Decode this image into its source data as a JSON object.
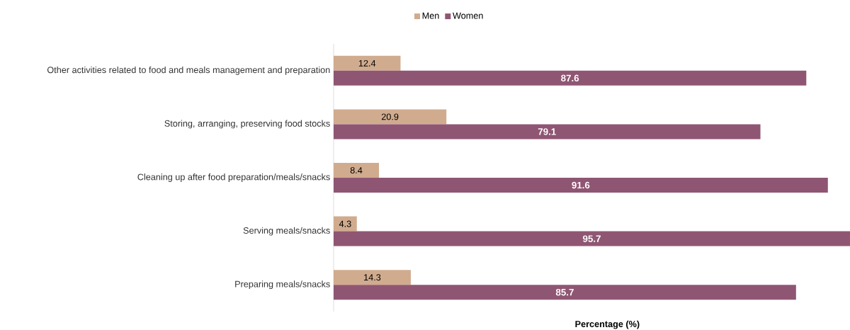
{
  "chart_data": {
    "type": "bar",
    "orientation": "horizontal",
    "xlabel": "Percentage (%)",
    "categories": [
      "Other activities related to food and meals management and preparation",
      "Storing, arranging, preserving food stocks",
      "Cleaning up after food preparation/meals/snacks",
      "Serving meals/snacks",
      "Preparing meals/snacks"
    ],
    "series": [
      {
        "name": "Men",
        "color": "#d0ab8e",
        "values": [
          12.4,
          20.9,
          8.4,
          4.3,
          14.3
        ]
      },
      {
        "name": "Women",
        "color": "#8f5673",
        "values": [
          87.6,
          79.1,
          91.6,
          95.7,
          85.7
        ]
      }
    ],
    "xlim": [
      0,
      95.7
    ],
    "data_labels": true,
    "legend": "top",
    "tick_labels": "y"
  }
}
